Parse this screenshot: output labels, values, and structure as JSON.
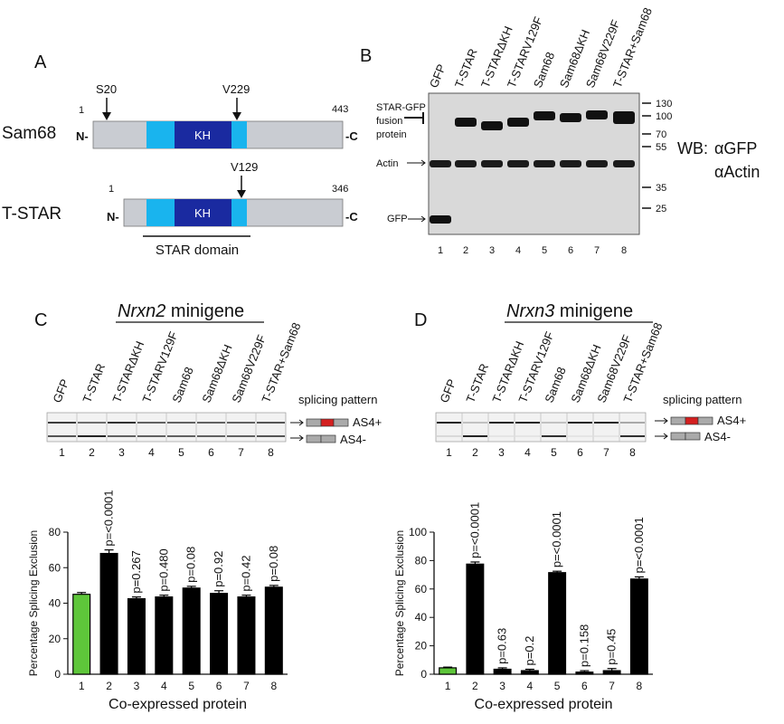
{
  "panel_a": {
    "letter": "A",
    "sam68": {
      "name": "Sam68",
      "start": "1",
      "end": "443",
      "n": "N-",
      "c": "-C",
      "kh": "KH",
      "site1": "S20",
      "site2": "V229"
    },
    "tstar": {
      "name": "T-STAR",
      "start": "1",
      "end": "346",
      "n": "N-",
      "c": "-C",
      "kh": "KH",
      "site": "V129",
      "domain_label": "STAR domain"
    }
  },
  "panel_b": {
    "letter": "B",
    "lanes": [
      "GFP",
      "T-STAR",
      "T-STARΔKH",
      "T-STARV129F",
      "Sam68",
      "Sam68ΔKH",
      "Sam68V229F",
      "T-STAR+Sam68"
    ],
    "lane_numbers": [
      "1",
      "2",
      "3",
      "4",
      "5",
      "6",
      "7",
      "8"
    ],
    "left_labels": {
      "fusion_1": "STAR-GFP",
      "fusion_2": "fusion",
      "fusion_3": "protein",
      "actin": "Actin",
      "gfp": "GFP"
    },
    "markers": [
      "130",
      "100",
      "70",
      "55",
      "35",
      "25"
    ],
    "wb_label": "WB:",
    "antibodies": [
      "αGFP",
      "αActin"
    ]
  },
  "panel_c": {
    "letter": "C",
    "title_italic": "Nrxn2",
    "title_rest": " minigene",
    "lanes": [
      "GFP",
      "T-STAR",
      "T-STARΔKH",
      "T-STARV129F",
      "Sam68",
      "Sam68ΔKH",
      "Sam68V229F",
      "T-STAR+Sam68"
    ],
    "lane_numbers": [
      "1",
      "2",
      "3",
      "4",
      "5",
      "6",
      "7",
      "8"
    ],
    "splicing_label": "splicing pattern",
    "as4_plus": "AS4+",
    "as4_minus": "AS4-"
  },
  "panel_d": {
    "letter": "D",
    "title_italic": "Nrxn3",
    "title_rest": " minigene",
    "lanes": [
      "GFP",
      "T-STAR",
      "T-STARΔKH",
      "T-STARV129F",
      "Sam68",
      "Sam68ΔKH",
      "Sam68V229F",
      "T-STAR+Sam68"
    ],
    "lane_numbers": [
      "1",
      "2",
      "3",
      "4",
      "5",
      "6",
      "7",
      "8"
    ],
    "splicing_label": "splicing pattern",
    "as4_plus": "AS4+",
    "as4_minus": "AS4-"
  },
  "colors": {
    "gfp_bar": "#5ec63a",
    "bar": "#000000",
    "kh": "#1a2aa0",
    "star_flank": "#19b4ee",
    "protein": "#c9ccd2",
    "exon_red": "#d42020"
  },
  "chart_data": [
    {
      "type": "bar",
      "categories": [
        "1",
        "2",
        "3",
        "4",
        "5",
        "6",
        "7",
        "8"
      ],
      "values": [
        45,
        68,
        42.5,
        43.5,
        48.5,
        45.5,
        43.5,
        49
      ],
      "errors": [
        1,
        2,
        1,
        1,
        1,
        1.5,
        1,
        1
      ],
      "annotations": [
        "",
        "p=<0.0001",
        "p=0.267",
        "p=0.480",
        "p=0.08",
        "p=0.92",
        "p=0.42",
        "p=0.08"
      ],
      "xlabel": "Co-expressed protein",
      "ylabel": "Percentage Splicing Exclusion",
      "ylim": [
        0,
        80
      ],
      "yticks": [
        "0",
        "20",
        "40",
        "60",
        "80"
      ]
    },
    {
      "type": "bar",
      "categories": [
        "1",
        "2",
        "3",
        "4",
        "5",
        "6",
        "7",
        "8"
      ],
      "values": [
        4.5,
        77.5,
        3.5,
        2.5,
        71.5,
        1.5,
        2.5,
        67
      ],
      "errors": [
        0.5,
        1.5,
        1,
        1,
        1,
        1,
        1.5,
        1.5
      ],
      "annotations": [
        "",
        "p=<0.0001",
        "p=0.63",
        "p=0.2",
        "p=<0.0001",
        "p=0.158",
        "p=0.45",
        "p=<0.0001"
      ],
      "xlabel": "Co-expressed protein",
      "ylabel": "Percentage Splicing Exclusion",
      "ylim": [
        0,
        100
      ],
      "yticks": [
        "0",
        "20",
        "40",
        "60",
        "80",
        "100"
      ]
    }
  ]
}
